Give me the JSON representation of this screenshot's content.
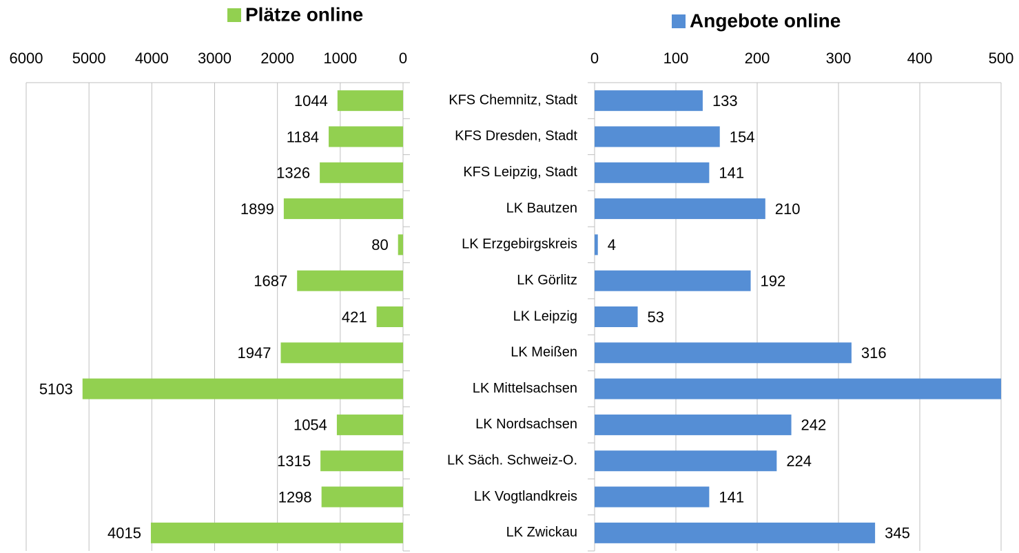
{
  "chart_data": [
    {
      "type": "bar",
      "orientation": "horizontal",
      "series": [
        {
          "name": "Plätze online",
          "color": "#92d050",
          "values": [
            1044,
            1184,
            1326,
            1899,
            80,
            1687,
            421,
            1947,
            5103,
            1054,
            1315,
            1298,
            4015
          ]
        }
      ],
      "xlim": [
        6000,
        0
      ],
      "xticks": [
        6000,
        5000,
        4000,
        3000,
        2000,
        1000,
        0
      ],
      "grid": true
    },
    {
      "type": "bar",
      "orientation": "horizontal",
      "categories": [
        "KFS Chemnitz, Stadt",
        "KFS Dresden, Stadt",
        "KFS Leipzig, Stadt",
        "LK Bautzen",
        "LK Erzgebirgskreis",
        "LK Görlitz",
        "LK Leipzig",
        "LK Meißen",
        "LK Mittelsachsen",
        "LK Nordsachsen",
        "LK Säch. Schweiz-O.",
        "LK Vogtlandkreis",
        "LK Zwickau"
      ],
      "series": [
        {
          "name": "Angebote online",
          "color": "#558ed5",
          "values": [
            133,
            154,
            141,
            210,
            4,
            192,
            53,
            316,
            500,
            242,
            224,
            141,
            345
          ]
        }
      ],
      "xlim": [
        0,
        500
      ],
      "xticks": [
        0,
        100,
        200,
        300,
        400,
        500
      ],
      "grid": true
    }
  ]
}
